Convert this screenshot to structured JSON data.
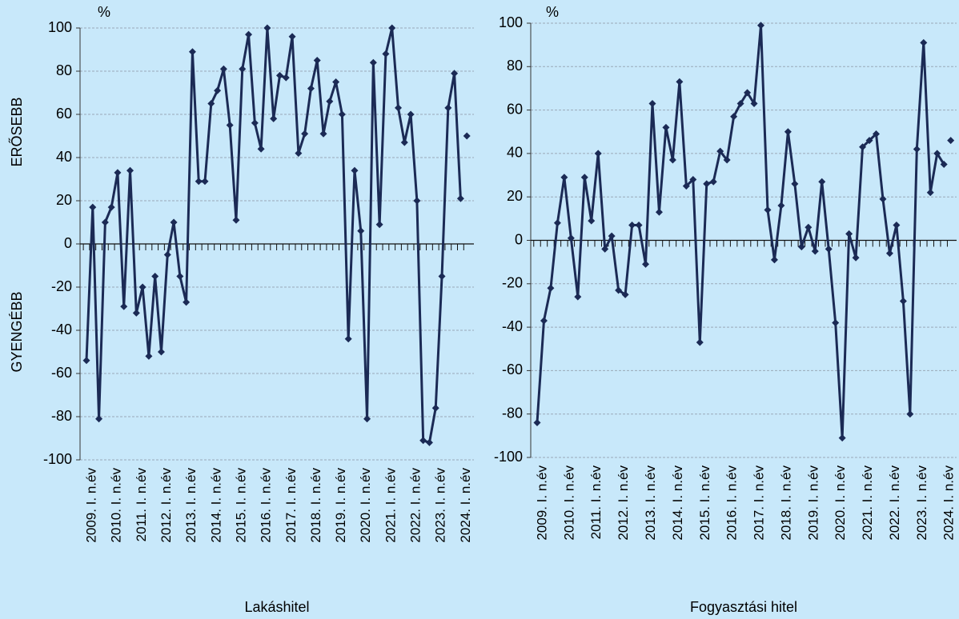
{
  "chart_data": [
    {
      "type": "line",
      "x_label": "Lakáshitel",
      "y_unit": "%",
      "y_annotations": [
        "ERŐSEBB",
        "GYENGÉBB"
      ],
      "categories": [
        "2009. I. n.év",
        null,
        null,
        null,
        "2010. I. n.év",
        null,
        null,
        null,
        "2011. I. n.év",
        null,
        null,
        null,
        "2012. I. n.év",
        null,
        null,
        null,
        "2013. I. n.év",
        null,
        null,
        null,
        "2014. I. n.év",
        null,
        null,
        null,
        "2015. I. n.év",
        null,
        null,
        null,
        "2016. I. n.év",
        null,
        null,
        null,
        "2017. I. n.év",
        null,
        null,
        null,
        "2018. I. n.év",
        null,
        null,
        null,
        "2019. I. n.év",
        null,
        null,
        null,
        "2020. I. n.év",
        null,
        null,
        null,
        "2021. I. n.év",
        null,
        null,
        null,
        "2022. I. n.év",
        null,
        null,
        null,
        "2023. I. n.év",
        null,
        null,
        null,
        "2024. I. n.év",
        null
      ],
      "series": [
        {
          "color": "#1b2a55",
          "line": true,
          "values": [
            -54,
            17,
            -81,
            10,
            17,
            33,
            -29,
            34,
            -32,
            -20,
            -52,
            -15,
            -50,
            -5,
            10,
            -15,
            -27,
            89,
            29,
            29,
            65,
            71,
            81,
            55,
            11,
            81,
            97,
            56,
            44,
            100,
            58,
            78,
            77,
            96,
            42,
            51,
            72,
            85,
            51,
            66,
            75,
            60,
            -44,
            34,
            6,
            -81,
            84,
            9,
            88,
            100,
            63,
            47,
            60,
            20,
            -91,
            -92,
            -76,
            -15,
            63,
            79,
            21,
            null
          ]
        },
        {
          "color": "#1b2a55",
          "line": false,
          "values": [
            null,
            null,
            null,
            null,
            null,
            null,
            null,
            null,
            null,
            null,
            null,
            null,
            null,
            null,
            null,
            null,
            null,
            null,
            null,
            null,
            null,
            null,
            null,
            null,
            null,
            null,
            null,
            null,
            null,
            null,
            null,
            null,
            null,
            null,
            null,
            null,
            null,
            null,
            null,
            null,
            null,
            null,
            null,
            null,
            null,
            null,
            null,
            null,
            null,
            null,
            null,
            null,
            null,
            null,
            null,
            null,
            null,
            null,
            null,
            null,
            null,
            50
          ]
        }
      ],
      "ylim": [
        -100,
        100
      ],
      "yticks": [
        -100,
        -80,
        -60,
        -40,
        -20,
        0,
        20,
        40,
        60,
        80,
        100
      ],
      "grid": true
    },
    {
      "type": "line",
      "x_label": "Fogyasztási hitel",
      "y_unit": "%",
      "categories": [
        "2009. I. n.év",
        null,
        null,
        null,
        "2010. I. n.év",
        null,
        null,
        null,
        "2011. I. n.év",
        null,
        null,
        null,
        "2012. I. n.év",
        null,
        null,
        null,
        "2013. I. n.év",
        null,
        null,
        null,
        "2014. I. n.év",
        null,
        null,
        null,
        "2015. I. n.év",
        null,
        null,
        null,
        "2016. I. n.év",
        null,
        null,
        null,
        "2017. I. n.év",
        null,
        null,
        null,
        "2018. I. n.év",
        null,
        null,
        null,
        "2019. I. n.év",
        null,
        null,
        null,
        "2020. I. n.év",
        null,
        null,
        null,
        "2021. I. n.év",
        null,
        null,
        null,
        "2022. I. n.év",
        null,
        null,
        null,
        "2023. I. n.év",
        null,
        null,
        null,
        "2024. I. n.év",
        null
      ],
      "series": [
        {
          "color": "#1b2a55",
          "line": true,
          "values": [
            -84,
            -37,
            -22,
            8,
            29,
            1,
            -26,
            29,
            9,
            40,
            -4,
            2,
            -23,
            -25,
            7,
            7,
            -11,
            63,
            13,
            52,
            37,
            73,
            25,
            28,
            -47,
            26,
            27,
            41,
            37,
            57,
            63,
            68,
            63,
            99,
            14,
            -9,
            16,
            50,
            26,
            -3,
            6,
            -5,
            27,
            -4,
            -38,
            -91,
            3,
            -8,
            43,
            46,
            49,
            19,
            -6,
            7,
            -28,
            -80,
            42,
            91,
            22,
            40,
            35,
            null
          ]
        },
        {
          "color": "#1b2a55",
          "line": false,
          "values": [
            null,
            null,
            null,
            null,
            null,
            null,
            null,
            null,
            null,
            null,
            null,
            null,
            null,
            null,
            null,
            null,
            null,
            null,
            null,
            null,
            null,
            null,
            null,
            null,
            null,
            null,
            null,
            null,
            null,
            null,
            null,
            null,
            null,
            null,
            null,
            null,
            null,
            null,
            null,
            null,
            null,
            null,
            null,
            null,
            null,
            null,
            null,
            null,
            null,
            null,
            null,
            null,
            null,
            null,
            null,
            null,
            null,
            null,
            null,
            null,
            null,
            46
          ]
        }
      ],
      "ylim": [
        -100,
        100
      ],
      "yticks": [
        -100,
        -80,
        -60,
        -40,
        -20,
        0,
        20,
        40,
        60,
        80,
        100
      ],
      "grid": true
    }
  ]
}
